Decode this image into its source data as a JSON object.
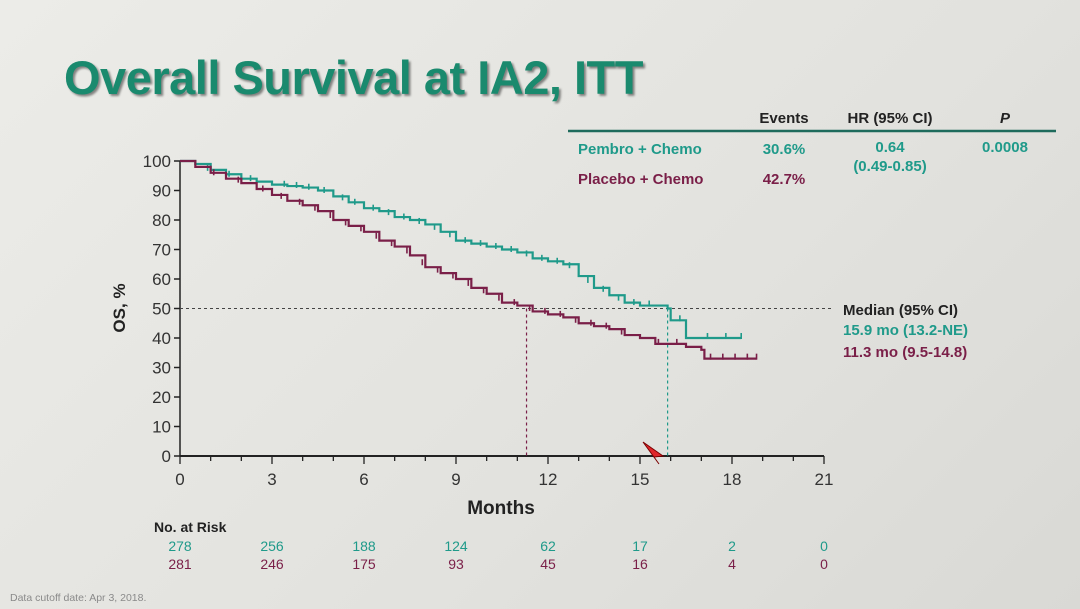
{
  "slide": {
    "title": "Overall Survival at IA2, ITT",
    "footnote": "Data cutoff date: Apr 3, 2018."
  },
  "stats_table": {
    "headers": {
      "events": "Events",
      "hr": "HR (95% CI)",
      "p": "P"
    },
    "rows": [
      {
        "arm": "Pembro + Chemo",
        "events": "30.6%",
        "hr": "0.64",
        "hr_ci": "(0.49-0.85)",
        "p": "0.0008",
        "color": "#1f9a8a"
      },
      {
        "arm": "Placebo + Chemo",
        "events": "42.7%",
        "color": "#7a1f48"
      }
    ]
  },
  "median_box": {
    "header": "Median (95% CI)",
    "rows": [
      {
        "text": "15.9 mo (13.2-NE)",
        "color": "#1f9a8a"
      },
      {
        "text": "11.3 mo (9.5-14.8)",
        "color": "#7a1f48"
      }
    ]
  },
  "risk_table": {
    "label": "No. at Risk",
    "rows": [
      {
        "values": [
          "278",
          "256",
          "188",
          "124",
          "62",
          "17",
          "2",
          "0"
        ],
        "color": "#1f9a8a"
      },
      {
        "values": [
          "281",
          "246",
          "175",
          "93",
          "45",
          "16",
          "4",
          "0"
        ],
        "color": "#7a1f48"
      }
    ]
  },
  "chart_data": {
    "type": "line",
    "step": true,
    "xlabel": "Months",
    "ylabel": "OS, %",
    "xlim": [
      0,
      21
    ],
    "ylim": [
      0,
      100
    ],
    "xticks": [
      0,
      3,
      6,
      9,
      12,
      15,
      18,
      21
    ],
    "yticks": [
      0,
      10,
      20,
      30,
      40,
      50,
      60,
      70,
      80,
      90,
      100
    ],
    "median_reference_y": 50,
    "grid": false,
    "series": [
      {
        "name": "Pembro + Chemo",
        "color": "#1f9a8a",
        "median_x": 15.9,
        "points": [
          [
            0,
            100
          ],
          [
            0.5,
            99
          ],
          [
            1,
            97
          ],
          [
            1.5,
            95.5
          ],
          [
            2,
            94
          ],
          [
            2.5,
            93
          ],
          [
            3,
            92
          ],
          [
            3.5,
            91.5
          ],
          [
            4,
            91
          ],
          [
            4.5,
            90
          ],
          [
            5,
            88
          ],
          [
            5.5,
            86
          ],
          [
            6,
            84
          ],
          [
            6.5,
            83
          ],
          [
            7,
            81
          ],
          [
            7.5,
            80
          ],
          [
            8,
            78.5
          ],
          [
            8.5,
            76
          ],
          [
            9,
            73
          ],
          [
            9.5,
            72
          ],
          [
            10,
            71
          ],
          [
            10.5,
            70
          ],
          [
            11,
            69
          ],
          [
            11.5,
            67
          ],
          [
            12,
            66
          ],
          [
            12.5,
            65
          ],
          [
            13,
            61
          ],
          [
            13.5,
            57
          ],
          [
            14,
            54.5
          ],
          [
            14.5,
            52
          ],
          [
            15,
            51
          ],
          [
            15.5,
            51
          ],
          [
            15.9,
            50
          ],
          [
            16,
            46
          ],
          [
            16.5,
            40
          ],
          [
            17,
            40
          ],
          [
            17.5,
            40
          ],
          [
            18,
            40
          ],
          [
            18.3,
            40
          ]
        ],
        "censor_marks": [
          [
            0.9,
            97
          ],
          [
            1.6,
            95
          ],
          [
            2.3,
            93.5
          ],
          [
            3.4,
            91.6
          ],
          [
            3.8,
            91.2
          ],
          [
            4.2,
            90.6
          ],
          [
            4.7,
            89.5
          ],
          [
            5.3,
            87
          ],
          [
            5.7,
            85.5
          ],
          [
            6.3,
            83.5
          ],
          [
            6.8,
            82
          ],
          [
            7.3,
            80.5
          ],
          [
            7.8,
            79
          ],
          [
            8.3,
            77
          ],
          [
            8.8,
            74.5
          ],
          [
            9.3,
            72.5
          ],
          [
            9.8,
            71.5
          ],
          [
            10.3,
            70.5
          ],
          [
            10.8,
            69.5
          ],
          [
            11.3,
            68
          ],
          [
            11.8,
            66.5
          ],
          [
            12.3,
            65.5
          ],
          [
            12.7,
            64
          ],
          [
            13.3,
            59
          ],
          [
            13.8,
            56
          ],
          [
            14.3,
            53
          ],
          [
            14.8,
            51.5
          ],
          [
            15.3,
            51
          ],
          [
            16.3,
            46
          ],
          [
            17.2,
            40
          ],
          [
            17.8,
            40
          ],
          [
            18.3,
            40
          ]
        ]
      },
      {
        "name": "Placebo + Chemo",
        "color": "#7a1f48",
        "median_x": 11.3,
        "points": [
          [
            0,
            100
          ],
          [
            0.5,
            98
          ],
          [
            1,
            96
          ],
          [
            1.5,
            94
          ],
          [
            2,
            92.5
          ],
          [
            2.5,
            90.5
          ],
          [
            3,
            88.5
          ],
          [
            3.5,
            86.5
          ],
          [
            4,
            85
          ],
          [
            4.5,
            83
          ],
          [
            5,
            80
          ],
          [
            5.5,
            78
          ],
          [
            6,
            76
          ],
          [
            6.5,
            73
          ],
          [
            7,
            71
          ],
          [
            7.5,
            68
          ],
          [
            8,
            64
          ],
          [
            8.5,
            62
          ],
          [
            9,
            60
          ],
          [
            9.5,
            57
          ],
          [
            10,
            55
          ],
          [
            10.5,
            52
          ],
          [
            11,
            51
          ],
          [
            11.5,
            49
          ],
          [
            12,
            48
          ],
          [
            12.5,
            47
          ],
          [
            13,
            45
          ],
          [
            13.5,
            44
          ],
          [
            14,
            43
          ],
          [
            14.5,
            41
          ],
          [
            15,
            40
          ],
          [
            15.5,
            38
          ],
          [
            16,
            38
          ],
          [
            16.5,
            37
          ],
          [
            17,
            36
          ],
          [
            17.1,
            33
          ],
          [
            17.5,
            33
          ],
          [
            18,
            33
          ],
          [
            18.5,
            33
          ],
          [
            18.8,
            33
          ]
        ],
        "censor_marks": [
          [
            1.1,
            95.5
          ],
          [
            1.9,
            93
          ],
          [
            2.7,
            90
          ],
          [
            3.3,
            87.5
          ],
          [
            3.9,
            85.5
          ],
          [
            4.4,
            83.5
          ],
          [
            4.9,
            81
          ],
          [
            5.4,
            78.5
          ],
          [
            5.9,
            76.5
          ],
          [
            6.4,
            74
          ],
          [
            6.9,
            71.5
          ],
          [
            7.4,
            69
          ],
          [
            7.9,
            65
          ],
          [
            8.4,
            62.5
          ],
          [
            8.9,
            60.5
          ],
          [
            9.4,
            58
          ],
          [
            9.9,
            55.5
          ],
          [
            10.4,
            53
          ],
          [
            10.9,
            51.5
          ],
          [
            11.4,
            49.5
          ],
          [
            11.9,
            48.5
          ],
          [
            12.4,
            47.5
          ],
          [
            12.9,
            45.5
          ],
          [
            13.4,
            44.5
          ],
          [
            13.9,
            43.5
          ],
          [
            14.4,
            41.5
          ],
          [
            15.6,
            38
          ],
          [
            16.2,
            38
          ],
          [
            17.3,
            33
          ],
          [
            17.7,
            33
          ],
          [
            18.1,
            33
          ],
          [
            18.5,
            33
          ],
          [
            18.8,
            33
          ]
        ]
      }
    ]
  }
}
